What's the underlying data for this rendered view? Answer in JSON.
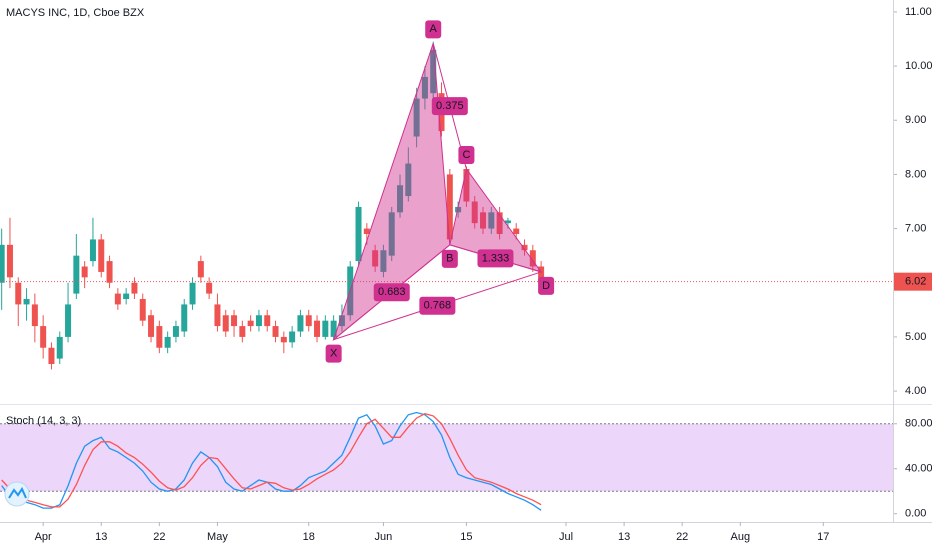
{
  "chart_data": [
    {
      "type": "candlestick",
      "title": "MACYS INC, 1D, Cboe BZX",
      "x": [
        0,
        1,
        2,
        3,
        4,
        5,
        6,
        7,
        8,
        9,
        10,
        11,
        12,
        13,
        14,
        15,
        16,
        17,
        18,
        19,
        20,
        21,
        22,
        23,
        24,
        25,
        26,
        27,
        28,
        29,
        30,
        31,
        32,
        33,
        34,
        35,
        36,
        37,
        38,
        39,
        40,
        41,
        42,
        43,
        44,
        45,
        46,
        47,
        48,
        49,
        50,
        51,
        52,
        53,
        54,
        55,
        56,
        57,
        58,
        59,
        60,
        61,
        62,
        63,
        64,
        65
      ],
      "open": [
        6.0,
        6.7,
        6.0,
        5.6,
        5.6,
        5.2,
        4.8,
        4.6,
        5.0,
        5.8,
        6.3,
        6.4,
        6.8,
        6.4,
        5.8,
        5.7,
        6.0,
        5.7,
        5.4,
        5.2,
        4.8,
        5.0,
        5.1,
        5.6,
        6.4,
        6.0,
        5.6,
        5.4,
        5.4,
        5.2,
        5.3,
        5.2,
        5.4,
        5.2,
        5.0,
        4.9,
        5.1,
        5.4,
        5.3,
        5.0,
        5.0,
        5.2,
        5.4,
        6.4,
        7.0,
        6.6,
        6.2,
        6.5,
        7.3,
        7.6,
        8.7,
        9.4,
        9.5,
        9.5,
        8.0,
        7.3,
        8.1,
        7.5,
        7.3,
        7.0,
        7.3,
        7.1,
        7.0,
        6.7,
        6.6,
        6.3
      ],
      "high": [
        7.0,
        7.2,
        6.1,
        5.9,
        5.8,
        5.4,
        4.9,
        5.1,
        6.0,
        6.9,
        6.4,
        7.2,
        6.9,
        6.5,
        5.9,
        5.9,
        6.1,
        5.8,
        5.5,
        5.3,
        5.1,
        5.3,
        5.7,
        6.1,
        6.5,
        6.1,
        5.8,
        5.5,
        5.5,
        5.3,
        5.4,
        5.5,
        5.5,
        5.3,
        5.1,
        5.2,
        5.5,
        5.5,
        5.4,
        5.4,
        5.4,
        5.6,
        6.4,
        7.5,
        7.1,
        6.7,
        6.7,
        7.4,
        8.0,
        8.5,
        9.6,
        10.0,
        10.45,
        9.7,
        8.1,
        7.5,
        8.15,
        7.6,
        7.4,
        7.4,
        7.4,
        7.2,
        7.1,
        6.8,
        6.7,
        6.4
      ],
      "low": [
        5.5,
        5.9,
        5.2,
        5.3,
        4.9,
        4.6,
        4.4,
        4.5,
        4.9,
        5.7,
        5.9,
        6.3,
        6.1,
        5.9,
        5.5,
        5.6,
        5.7,
        5.2,
        4.9,
        4.7,
        4.7,
        4.9,
        5.0,
        5.5,
        6.0,
        5.7,
        5.1,
        5.0,
        5.0,
        4.9,
        5.1,
        5.1,
        5.1,
        4.9,
        4.7,
        4.8,
        5.0,
        5.1,
        4.9,
        4.95,
        4.95,
        5.1,
        5.3,
        6.3,
        6.7,
        6.2,
        6.1,
        6.4,
        7.2,
        7.5,
        8.5,
        9.2,
        9.3,
        8.7,
        6.7,
        7.2,
        7.4,
        7.0,
        6.9,
        6.9,
        6.8,
        7.0,
        6.8,
        6.5,
        6.2,
        5.95
      ],
      "close": [
        6.7,
        6.1,
        5.6,
        5.7,
        5.2,
        4.8,
        4.5,
        5.0,
        5.6,
        6.5,
        6.1,
        6.8,
        6.2,
        6.0,
        5.6,
        5.8,
        5.8,
        5.3,
        5.0,
        4.8,
        5.0,
        5.2,
        5.6,
        6.0,
        6.1,
        5.8,
        5.2,
        5.1,
        5.2,
        5.0,
        5.2,
        5.4,
        5.2,
        5.0,
        4.9,
        5.1,
        5.4,
        5.2,
        5.0,
        5.3,
        5.3,
        5.4,
        6.3,
        7.4,
        6.9,
        6.3,
        6.6,
        7.3,
        7.8,
        8.2,
        9.4,
        9.8,
        10.3,
        8.8,
        6.8,
        7.4,
        7.5,
        7.1,
        7.0,
        7.3,
        6.9,
        7.15,
        6.9,
        6.6,
        6.3,
        6.02
      ],
      "up_color": "#26a69a",
      "down_color": "#ef5350",
      "xlim": [
        -0.2,
        107.4
      ],
      "xticks": [
        {
          "value": 5,
          "label": "Apr"
        },
        {
          "value": 12,
          "label": "13"
        },
        {
          "value": 19,
          "label": "22"
        },
        {
          "value": 26,
          "label": "May"
        },
        {
          "value": 37,
          "label": "18"
        },
        {
          "value": 46,
          "label": "Jun"
        },
        {
          "value": 56,
          "label": "15"
        },
        {
          "value": 68,
          "label": "Jul"
        },
        {
          "value": 75,
          "label": "13"
        },
        {
          "value": 82,
          "label": "22"
        },
        {
          "value": 89,
          "label": "Aug"
        },
        {
          "value": 99,
          "label": "17"
        }
      ],
      "ylim": [
        3.78,
        11.22
      ],
      "yticks": [
        {
          "value": 4,
          "label": "4.00"
        },
        {
          "value": 5,
          "label": "5.00"
        },
        {
          "value": 6,
          "label": "6.00"
        },
        {
          "value": 7,
          "label": "7.00"
        },
        {
          "value": 8,
          "label": "8.00"
        },
        {
          "value": 9,
          "label": "9.00"
        },
        {
          "value": 10,
          "label": "10.00"
        },
        {
          "value": 11,
          "label": "11.00"
        }
      ],
      "pattern": {
        "color": "#d0308f",
        "points": [
          {
            "label": "X",
            "x": 40,
            "y": 4.95
          },
          {
            "label": "A",
            "x": 52,
            "y": 10.42
          },
          {
            "label": "B",
            "x": 54,
            "y": 6.7
          },
          {
            "label": "C",
            "x": 56,
            "y": 8.1
          },
          {
            "label": "D",
            "x": 65,
            "y": 6.2
          }
        ],
        "ratios": [
          0.683,
          0.375,
          1.333,
          0.768
        ]
      }
    },
    {
      "type": "stochastic",
      "title": "Stoch (14, 3, 3)",
      "ylim": [
        -7.4,
        96.7
      ],
      "yticks": [
        {
          "value": 0,
          "label": "0.00"
        },
        {
          "value": 40,
          "label": "40.00"
        },
        {
          "value": 80,
          "label": "80.00"
        }
      ],
      "band": [
        20,
        80
      ],
      "band_color": "#e6c8f7",
      "series": [
        {
          "color": "#2196f3",
          "values": [
            25,
            15,
            12,
            10,
            8,
            5,
            5,
            8,
            25,
            45,
            60,
            65,
            68,
            58,
            55,
            50,
            45,
            38,
            28,
            22,
            20,
            22,
            30,
            45,
            55,
            50,
            42,
            28,
            22,
            20,
            25,
            30,
            28,
            22,
            20,
            20,
            25,
            32,
            35,
            38,
            45,
            52,
            68,
            85,
            88,
            78,
            62,
            65,
            78,
            88,
            90,
            88,
            82,
            70,
            50,
            35,
            32,
            30,
            28,
            26,
            22,
            18,
            15,
            12,
            8,
            3
          ]
        },
        {
          "color": "#ff5252",
          "values": [
            30,
            22,
            17,
            12,
            10,
            8,
            6,
            6,
            13,
            26,
            43,
            57,
            64,
            64,
            60,
            54,
            50,
            44,
            37,
            29,
            23,
            21,
            24,
            32,
            43,
            50,
            49,
            40,
            31,
            23,
            22,
            25,
            28,
            27,
            23,
            21,
            22,
            26,
            31,
            35,
            39,
            45,
            55,
            68,
            80,
            84,
            76,
            68,
            68,
            77,
            85,
            89,
            87,
            80,
            67,
            52,
            39,
            32,
            30,
            28,
            25,
            22,
            18,
            15,
            12,
            8
          ]
        }
      ]
    }
  ]
}
